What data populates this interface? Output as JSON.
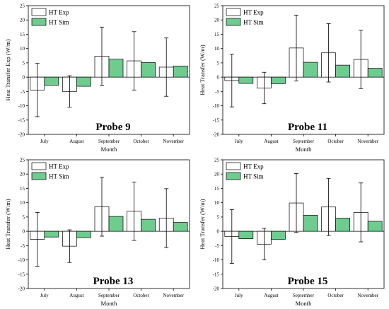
{
  "colors": {
    "exp": "#ffffff",
    "sim": "#6fcc8f",
    "stroke": "#000000"
  },
  "chart_data": [
    {
      "type": "bar",
      "title": "Probe 9",
      "ylabel": "Heat Transfer Exp (W/m)",
      "xlabel": "Month",
      "categories": [
        "July",
        "August",
        "September",
        "October",
        "November"
      ],
      "ylim": [
        -20,
        25
      ],
      "yticks": [
        -20,
        -15,
        -10,
        -5,
        0,
        5,
        10,
        15,
        20,
        25
      ],
      "legend": "top-left",
      "series": [
        {
          "name": "HT Exp",
          "values": [
            -4.5,
            -5.0,
            7.3,
            5.7,
            3.5
          ],
          "error": [
            9.3,
            5.5,
            10.2,
            10.2,
            10.2
          ]
        },
        {
          "name": "HT Sim",
          "values": [
            -2.8,
            -3.2,
            6.3,
            5.1,
            3.9
          ]
        }
      ]
    },
    {
      "type": "bar",
      "title": "Probe 11",
      "ylabel": "Heat Transfer (W/m)",
      "xlabel": "Month",
      "categories": [
        "July",
        "August",
        "September",
        "October",
        "November"
      ],
      "ylim": [
        -20,
        25
      ],
      "yticks": [
        -20,
        -15,
        -10,
        -5,
        0,
        5,
        10,
        15,
        20,
        25
      ],
      "legend": "top-left",
      "series": [
        {
          "name": "HT Exp",
          "values": [
            -1.2,
            -3.8,
            10.2,
            8.5,
            6.2
          ],
          "error": [
            9.2,
            5.5,
            11.5,
            10.2,
            10.2
          ]
        },
        {
          "name": "HT Sim",
          "values": [
            -2.2,
            -2.3,
            5.2,
            4.2,
            3.1
          ]
        }
      ]
    },
    {
      "type": "bar",
      "title": "Probe 13",
      "ylabel": "Heat Transfer (W/m)",
      "xlabel": "Month",
      "categories": [
        "July",
        "August",
        "September",
        "October",
        "November"
      ],
      "ylim": [
        -20,
        25
      ],
      "yticks": [
        -20,
        -15,
        -10,
        -5,
        0,
        5,
        10,
        15,
        20,
        25
      ],
      "legend": "top-left",
      "series": [
        {
          "name": "HT Exp",
          "values": [
            -2.8,
            -5.2,
            8.6,
            7.0,
            4.6
          ],
          "error": [
            9.4,
            5.7,
            10.3,
            10.2,
            10.3
          ]
        },
        {
          "name": "HT Sim",
          "values": [
            -2.0,
            -2.2,
            5.2,
            4.2,
            3.1
          ]
        }
      ]
    },
    {
      "type": "bar",
      "title": "Probe 15",
      "ylabel": "Heat Transfer (W/m)",
      "xlabel": "Month",
      "categories": [
        "July",
        "August",
        "September",
        "October",
        "November"
      ],
      "ylim": [
        -20,
        25
      ],
      "yticks": [
        -20,
        -15,
        -10,
        -5,
        0,
        5,
        10,
        15,
        20,
        25
      ],
      "legend": "top-left",
      "series": [
        {
          "name": "HT Exp",
          "values": [
            -1.8,
            -4.5,
            9.9,
            8.5,
            6.6
          ],
          "error": [
            9.4,
            5.5,
            10.3,
            10.0,
            10.3
          ]
        },
        {
          "name": "HT Sim",
          "values": [
            -2.6,
            -2.8,
            5.6,
            4.6,
            3.5
          ]
        }
      ]
    }
  ]
}
